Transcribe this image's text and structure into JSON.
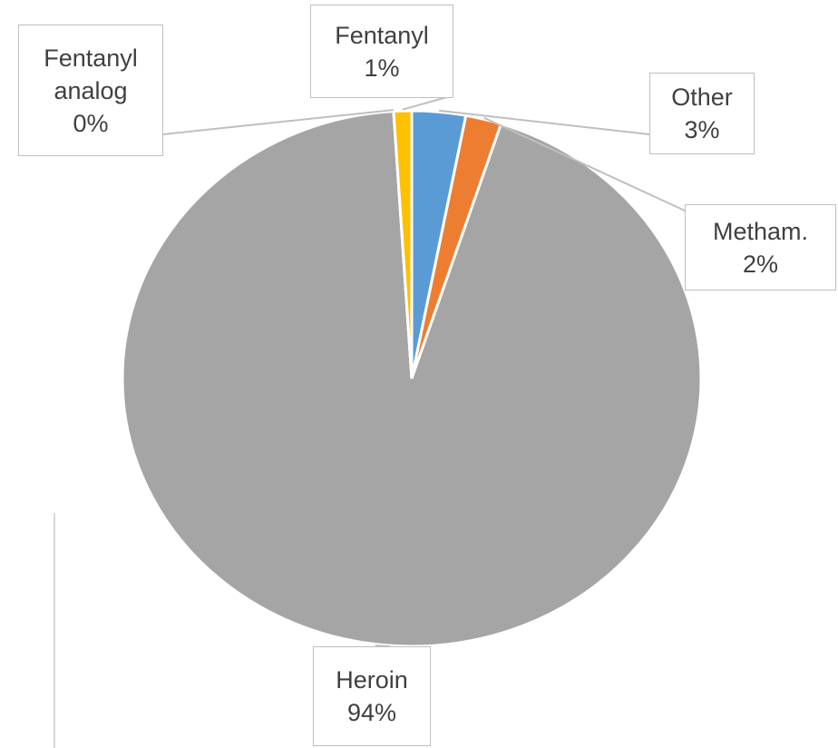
{
  "chart_data": {
    "type": "pie",
    "categories": [
      "Other",
      "Metham.",
      "Heroin",
      "Fentanyl analog",
      "Fentanyl"
    ],
    "values": [
      3,
      2,
      94,
      0,
      1
    ],
    "value_labels": [
      "3%",
      "2%",
      "94%",
      "0%",
      "1%"
    ],
    "colors": [
      "#5b9bd5",
      "#ed7d31",
      "#a5a5a5",
      "#ffc000",
      "#ffc000"
    ]
  }
}
